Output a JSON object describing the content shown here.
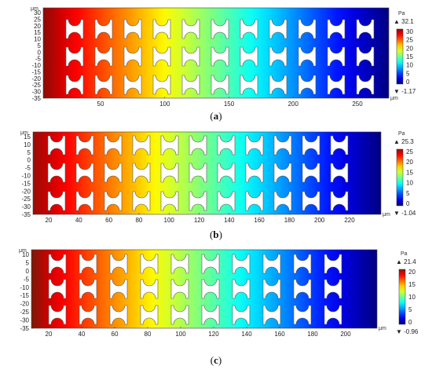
{
  "panels": [
    {
      "caption_letter": "a",
      "y_unit": "μm",
      "x_unit": "μm",
      "y_ticks": [
        "30",
        "25",
        "20",
        "15",
        "10",
        "5",
        "0",
        "-5",
        "-10",
        "-15",
        "-20",
        "-25",
        "-30",
        "-35"
      ],
      "x_ticks": [
        "50",
        "100",
        "150",
        "200",
        "250"
      ],
      "colorbar": {
        "unit": "Pa",
        "max_marker": "32.1",
        "min_marker": "-1.17",
        "ticks": [
          "30",
          "25",
          "20",
          "15",
          "10",
          "5",
          "0"
        ]
      },
      "field": {
        "start_color": "#8b0a05",
        "hot_edge": "#a01005"
      },
      "chart_data": {
        "type": "heatmap",
        "quantity": "pressure",
        "unit": "Pa",
        "max": 32.1,
        "min": -1.17,
        "x_range": [
          0,
          270
        ],
        "y_range": [
          -35,
          30
        ],
        "channel_columns": 11,
        "channel_rows": 3
      }
    },
    {
      "caption_letter": "b",
      "y_unit": "μm",
      "x_unit": "μm",
      "y_ticks": [
        "15",
        "10",
        "5",
        "0",
        "-5",
        "-10",
        "-15",
        "-20",
        "-25",
        "-30",
        "-35"
      ],
      "x_ticks": [
        "20",
        "40",
        "60",
        "80",
        "100",
        "120",
        "140",
        "160",
        "180",
        "200",
        "220"
      ],
      "colorbar": {
        "unit": "Pa",
        "max_marker": "25.3",
        "min_marker": "-1.04",
        "ticks": [
          "25",
          "20",
          "15",
          "10",
          "5",
          "0"
        ]
      },
      "field": {
        "start_color": "#9a0c05"
      },
      "chart_data": {
        "type": "heatmap",
        "quantity": "pressure",
        "unit": "Pa",
        "max": 25.3,
        "min": -1.04,
        "x_range": [
          0,
          235
        ],
        "y_range": [
          -35,
          18
        ],
        "channel_columns": 11,
        "channel_rows": 3
      }
    },
    {
      "caption_letter": "c",
      "y_unit": "μm",
      "x_unit": "μm",
      "y_ticks": [
        "10",
        "5",
        "0",
        "-5",
        "-10",
        "-15",
        "-20",
        "-25",
        "-30",
        "-35"
      ],
      "x_ticks": [
        "20",
        "40",
        "60",
        "80",
        "100",
        "120",
        "140",
        "160",
        "180",
        "200"
      ],
      "colorbar": {
        "unit": "Pa",
        "max_marker": "21.4",
        "min_marker": "-0.96",
        "ticks": [
          "20",
          "15",
          "10",
          "5",
          "0"
        ]
      },
      "field": {
        "start_color": "#7a1a08"
      },
      "chart_data": {
        "type": "heatmap",
        "quantity": "pressure",
        "unit": "Pa",
        "max": 21.4,
        "min": -0.96,
        "x_range": [
          0,
          215
        ],
        "y_range": [
          -38,
          15
        ],
        "channel_columns": 10,
        "channel_rows": 3
      }
    }
  ],
  "markers": {
    "up": "▲",
    "down": "▼"
  }
}
